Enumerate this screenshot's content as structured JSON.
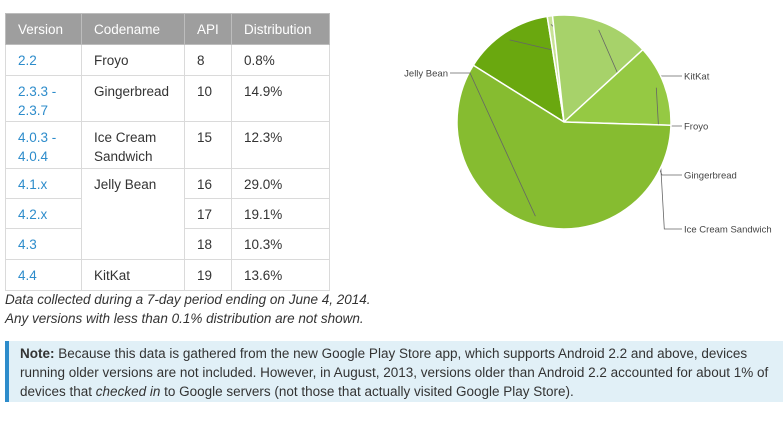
{
  "table": {
    "headers": [
      "Version",
      "Codename",
      "API",
      "Distribution"
    ],
    "rows": [
      {
        "version": "2.2",
        "codename": "Froyo",
        "api": "8",
        "dist": "0.8%"
      },
      {
        "version": "2.3.3 - 2.3.7",
        "codename": "Gingerbread",
        "api": "10",
        "dist": "14.9%"
      },
      {
        "version": "4.0.3 - 4.0.4",
        "codename": "Ice Cream Sandwich",
        "api": "15",
        "dist": "12.3%"
      },
      {
        "version": "4.1.x",
        "codename": "Jelly Bean",
        "api": "16",
        "dist": "29.0%"
      },
      {
        "version": "4.2.x",
        "codename": "",
        "api": "17",
        "dist": "19.1%"
      },
      {
        "version": "4.3",
        "codename": "",
        "api": "18",
        "dist": "10.3%"
      },
      {
        "version": "4.4",
        "codename": "KitKat",
        "api": "19",
        "dist": "13.6%"
      }
    ]
  },
  "chart_data": {
    "type": "pie",
    "title": "",
    "slices": [
      {
        "label": "KitKat",
        "value": 13.6,
        "color": "#6aa80f"
      },
      {
        "label": "Froyo",
        "value": 0.8,
        "color": "#c8e296"
      },
      {
        "label": "Gingerbread",
        "value": 14.9,
        "color": "#a7d26a"
      },
      {
        "label": "Ice Cream Sandwich",
        "value": 12.3,
        "color": "#95c943"
      },
      {
        "label": "Jelly Bean",
        "value": 58.4,
        "color": "#86bc30"
      }
    ],
    "legend": "callout labels"
  },
  "footnote": {
    "line1": "Data collected during a 7-day period ending on June 4, 2014.",
    "line2": "Any versions with less than 0.1% distribution are not shown."
  },
  "note": {
    "label": "Note:",
    "text1": " Because this data is gathered from the new Google Play Store app, which supports Android 2.2 and above, devices running older versions are not included. However, in August, 2013, versions older than Android 2.2 accounted for about 1% of devices that ",
    "emph": "checked in",
    "text2": " to Google servers (not those that actually visited Google Play Store)."
  },
  "colors": {
    "header_bg": "#9e9e9e",
    "link": "#2d8ccb",
    "note_bg": "#e1f0f7"
  }
}
